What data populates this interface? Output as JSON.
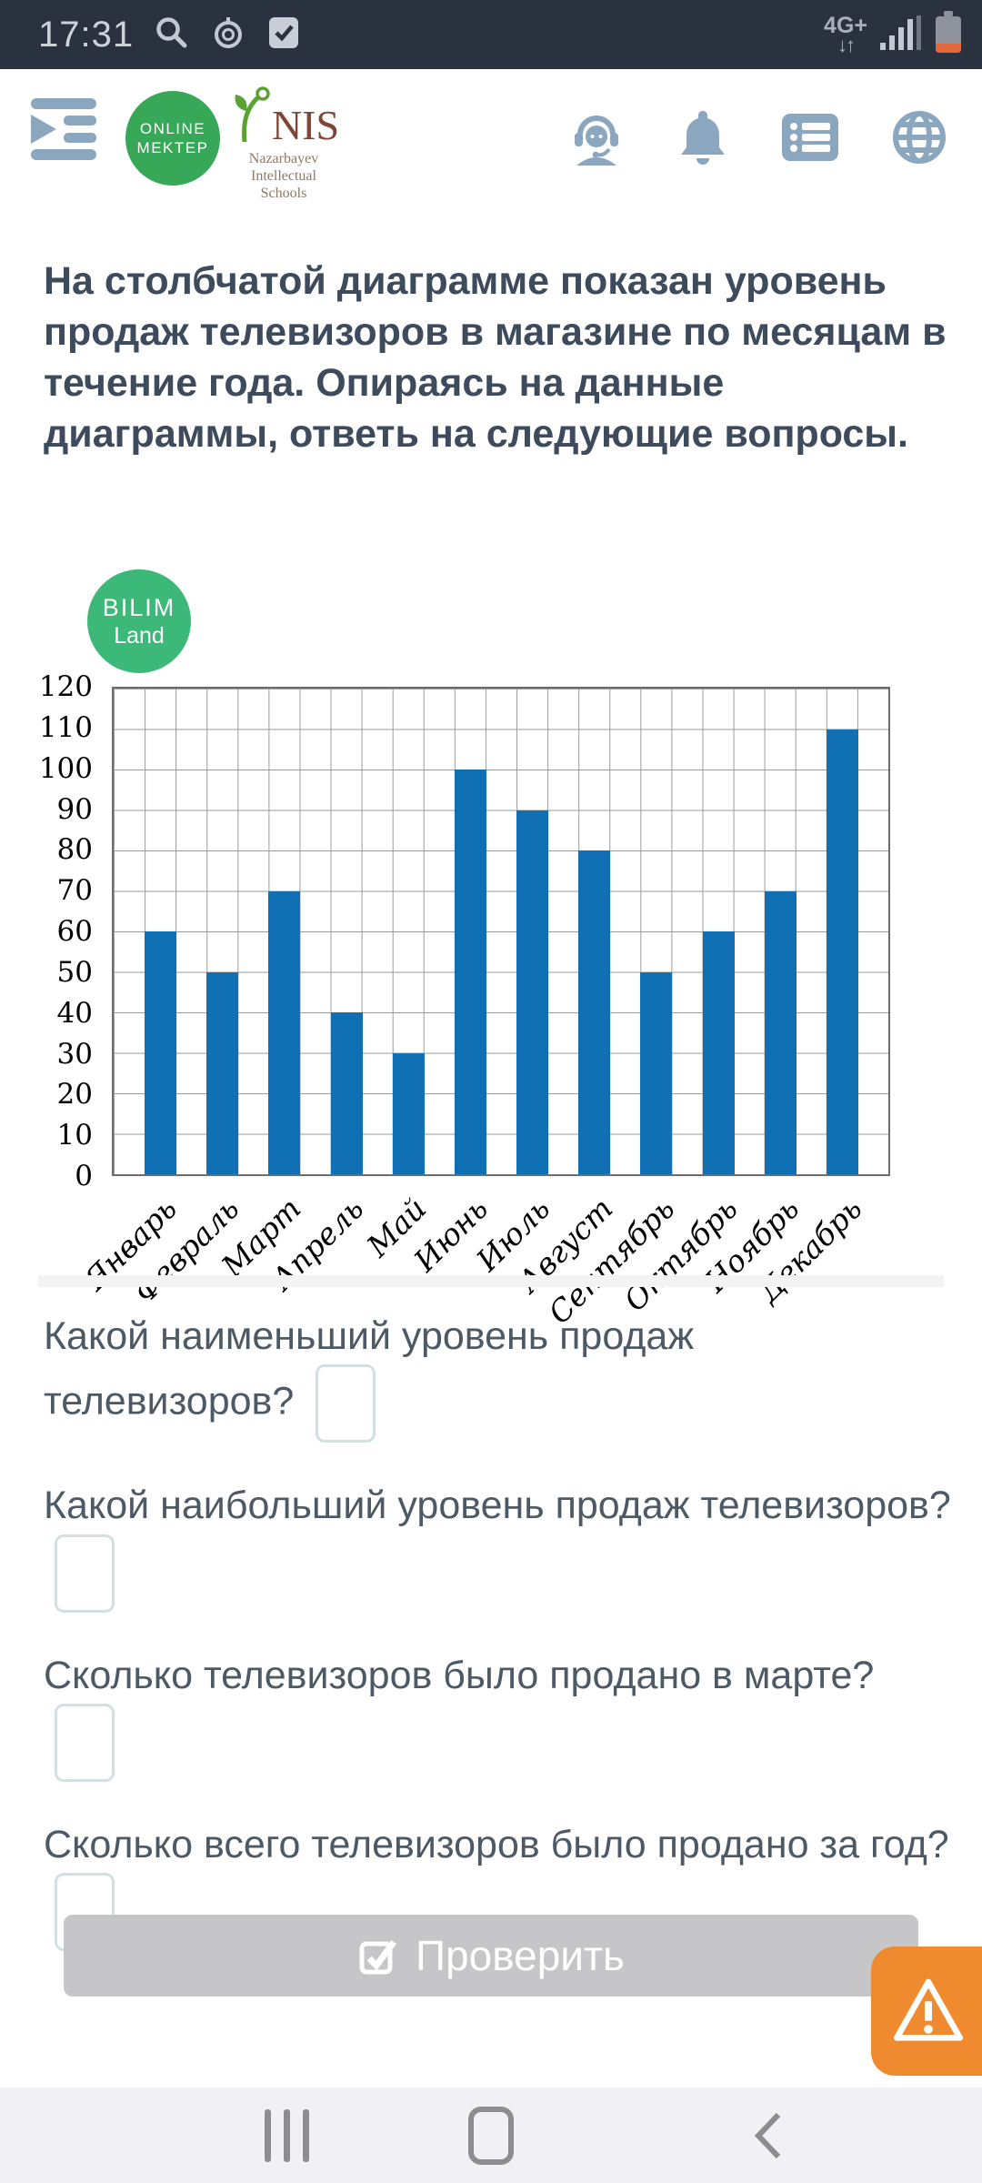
{
  "colors": {
    "bar_blue": "#1170b4",
    "brand_green": "#36a857",
    "bilim_green": "#3cb878",
    "accent_orange": "#ef8a2e",
    "header_icon_blue": "#8ba6bf",
    "status_bar_bg": "#2a313f"
  },
  "status_bar": {
    "time": "17:31",
    "network_label": "4G+",
    "network_arrows": "↓↑"
  },
  "header": {
    "logo_online": {
      "line1": "ONLINE",
      "line2": "MEKTEP"
    },
    "logo_nis": {
      "abbr": "NIS",
      "line1": "Nazarbayev",
      "line2": "Intellectual",
      "line3": "Schools"
    }
  },
  "intro": {
    "text": "На столбчатой диаграмме показан уровень продаж телевизоров в магазине по месяцам в течение года. Опираясь на данные диаграммы, ответь на следующие вопросы."
  },
  "chart_data": {
    "type": "bar",
    "logo": {
      "line1": "BILIM",
      "line2": "Land"
    },
    "categories": [
      "Январь",
      "Февраль",
      "Март",
      "Апрель",
      "Май",
      "Июнь",
      "Июль",
      "Август",
      "Сентябрь",
      "Октябрь",
      "Ноябрь",
      "Декабрь"
    ],
    "values": [
      60,
      50,
      70,
      40,
      30,
      100,
      90,
      80,
      50,
      60,
      70,
      110
    ],
    "title": "",
    "xlabel": "",
    "ylabel": "",
    "ylim": [
      0,
      120
    ],
    "ytick_step": 10,
    "grid": true,
    "legend": false,
    "bar_color": "#1170b4"
  },
  "questions": [
    {
      "text": "Какой наименьший уровень продаж телевизоров?",
      "value": ""
    },
    {
      "text": "Какой наибольший уровень продаж телевизоров?",
      "value": ""
    },
    {
      "text": "Сколько телевизоров было продано в марте?",
      "value": ""
    },
    {
      "text": "Сколько всего телевизоров было продано за год?",
      "value": ""
    }
  ],
  "check_button": {
    "label": "Проверить"
  },
  "icons": {
    "status_left": [
      "search-icon",
      "timer-icon",
      "checkbox-icon"
    ],
    "status_right": [
      "signal-icon",
      "battery-icon"
    ],
    "header_right": [
      "support-agent-icon",
      "bell-icon",
      "list-icon",
      "globe-icon"
    ],
    "nav": [
      "recents-icon",
      "home-icon",
      "back-icon"
    ],
    "button": "check-square-icon",
    "fab": "warning-triangle-icon"
  }
}
